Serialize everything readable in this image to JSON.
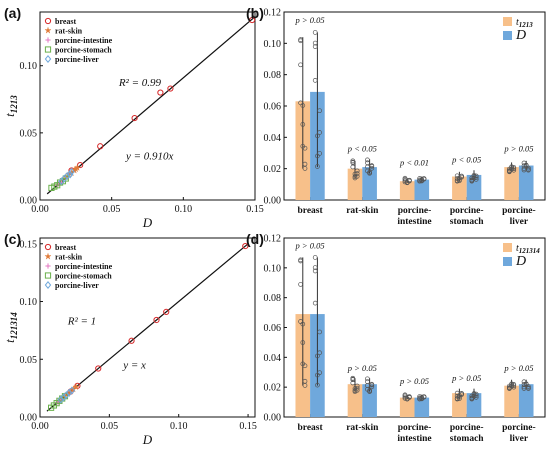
{
  "chart_data": [
    {
      "panel": "(a)",
      "type": "scatter",
      "xlabel": "D",
      "ylabel": "t",
      "ylabel_sub": "1213",
      "xlim": [
        0,
        0.15
      ],
      "ylim": [
        0,
        0.14
      ],
      "xticks": [
        "0.00",
        "0.05",
        "0.10",
        "0.15"
      ],
      "yticks": [
        "0.00",
        "0.05",
        "0.10"
      ],
      "annotations": [
        {
          "text": "R² = 0.99",
          "x": 0.055,
          "y": 0.085
        },
        {
          "text": "y = 0.910x",
          "x": 0.06,
          "y": 0.03
        }
      ],
      "fit_line": {
        "slope": 0.91,
        "x": [
          0.005,
          0.15
        ]
      },
      "series": [
        {
          "name": "breast",
          "marker": "circle",
          "color": "#d62728",
          "points": [
            [
              0.022,
              0.022
            ],
            [
              0.028,
              0.026
            ],
            [
              0.042,
              0.04
            ],
            [
              0.066,
              0.061
            ],
            [
              0.084,
              0.08
            ],
            [
              0.091,
              0.083
            ],
            [
              0.148,
              0.134
            ]
          ]
        },
        {
          "name": "rat-skin",
          "marker": "star",
          "color": "#e07b39",
          "points": [
            [
              0.018,
              0.017
            ],
            [
              0.02,
              0.019
            ],
            [
              0.022,
              0.02
            ],
            [
              0.024,
              0.022
            ],
            [
              0.025,
              0.023
            ],
            [
              0.026,
              0.024
            ]
          ]
        },
        {
          "name": "porcine-intestine",
          "marker": "plus",
          "color": "#e377c2",
          "points": [
            [
              0.012,
              0.011
            ],
            [
              0.013,
              0.012
            ],
            [
              0.014,
              0.013
            ],
            [
              0.015,
              0.013
            ]
          ]
        },
        {
          "name": "porcine-stomach",
          "marker": "square",
          "color": "#6ab04c",
          "points": [
            [
              0.008,
              0.009
            ],
            [
              0.01,
              0.01
            ],
            [
              0.012,
              0.011
            ],
            [
              0.014,
              0.013
            ],
            [
              0.016,
              0.014
            ],
            [
              0.018,
              0.016
            ]
          ]
        },
        {
          "name": "porcine-liver",
          "marker": "diamond",
          "color": "#6fa8dc",
          "points": [
            [
              0.015,
              0.014
            ],
            [
              0.017,
              0.016
            ],
            [
              0.019,
              0.018
            ],
            [
              0.021,
              0.019
            ],
            [
              0.022,
              0.021
            ]
          ]
        }
      ]
    },
    {
      "panel": "(b)",
      "type": "bar",
      "ylim": [
        0,
        0.12
      ],
      "yticks": [
        "0.00",
        "0.02",
        "0.04",
        "0.06",
        "0.08",
        "0.10",
        "0.12"
      ],
      "categories": [
        "breast",
        "rat-skin",
        "porcine-\nintestine",
        "porcine-\nstomach",
        "porcine-\nliver"
      ],
      "series": [
        {
          "name": "t",
          "name_sub": "1213",
          "color": "#f7c08a",
          "values": [
            0.063,
            0.02,
            0.012,
            0.015,
            0.021
          ],
          "err_low": [
            0.02,
            0.014,
            0.011,
            0.012,
            0.018
          ],
          "err_high": [
            0.104,
            0.025,
            0.014,
            0.018,
            0.024
          ]
        },
        {
          "name": "D",
          "name_sub": "",
          "color": "#6fa8dc",
          "values": [
            0.069,
            0.021,
            0.013,
            0.016,
            0.022
          ],
          "err_low": [
            0.021,
            0.017,
            0.012,
            0.012,
            0.019
          ],
          "err_high": [
            0.107,
            0.026,
            0.015,
            0.019,
            0.025
          ]
        }
      ],
      "significance": [
        "p > 0.05",
        "p < 0.05",
        "p < 0.01",
        "p < 0.05",
        "p > 0.05"
      ],
      "sig_heights": [
        0.113,
        0.031,
        0.022,
        0.024,
        0.031
      ]
    },
    {
      "panel": "(c)",
      "type": "scatter",
      "xlabel": "D",
      "ylabel": "t",
      "ylabel_sub": "121314",
      "xlim": [
        0,
        0.155
      ],
      "ylim": [
        0,
        0.155
      ],
      "xticks": [
        "0.00",
        "0.05",
        "0.10",
        "0.15"
      ],
      "yticks": [
        "0.00",
        "0.05",
        "0.10",
        "0.15"
      ],
      "annotations": [
        {
          "text": "R² = 1",
          "x": 0.02,
          "y": 0.08
        },
        {
          "text": "y = x",
          "x": 0.06,
          "y": 0.042
        }
      ],
      "fit_line": {
        "slope": 1.0,
        "x": [
          0.005,
          0.15
        ]
      },
      "series": [
        {
          "name": "breast",
          "marker": "circle",
          "color": "#d62728",
          "points": [
            [
              0.022,
              0.022
            ],
            [
              0.027,
              0.027
            ],
            [
              0.042,
              0.042
            ],
            [
              0.066,
              0.066
            ],
            [
              0.084,
              0.084
            ],
            [
              0.091,
              0.091
            ],
            [
              0.148,
              0.148
            ]
          ]
        },
        {
          "name": "rat-skin",
          "marker": "star",
          "color": "#e07b39",
          "points": [
            [
              0.018,
              0.018
            ],
            [
              0.02,
              0.02
            ],
            [
              0.022,
              0.022
            ],
            [
              0.024,
              0.024
            ],
            [
              0.026,
              0.026
            ]
          ]
        },
        {
          "name": "porcine-intestine",
          "marker": "plus",
          "color": "#e377c2",
          "points": [
            [
              0.012,
              0.012
            ],
            [
              0.013,
              0.013
            ],
            [
              0.014,
              0.014
            ],
            [
              0.015,
              0.015
            ]
          ]
        },
        {
          "name": "porcine-stomach",
          "marker": "square",
          "color": "#6ab04c",
          "points": [
            [
              0.008,
              0.008
            ],
            [
              0.01,
              0.01
            ],
            [
              0.012,
              0.012
            ],
            [
              0.014,
              0.014
            ],
            [
              0.016,
              0.016
            ],
            [
              0.018,
              0.018
            ]
          ]
        },
        {
          "name": "porcine-liver",
          "marker": "diamond",
          "color": "#6fa8dc",
          "points": [
            [
              0.015,
              0.015
            ],
            [
              0.017,
              0.017
            ],
            [
              0.019,
              0.019
            ],
            [
              0.021,
              0.021
            ],
            [
              0.023,
              0.023
            ]
          ]
        }
      ]
    },
    {
      "panel": "(d)",
      "type": "bar",
      "ylim": [
        0,
        0.12
      ],
      "yticks": [
        "0.00",
        "0.02",
        "0.04",
        "0.06",
        "0.08",
        "0.10",
        "0.12"
      ],
      "categories": [
        "breast",
        "rat-skin",
        "porcine-\nintestine",
        "porcine-\nstomach",
        "porcine-\nliver"
      ],
      "series": [
        {
          "name": "t",
          "name_sub": "121314",
          "color": "#f7c08a",
          "values": [
            0.069,
            0.022,
            0.013,
            0.016,
            0.021
          ],
          "err_low": [
            0.021,
            0.017,
            0.012,
            0.012,
            0.019
          ],
          "err_high": [
            0.107,
            0.026,
            0.015,
            0.019,
            0.025
          ]
        },
        {
          "name": "D",
          "name_sub": "",
          "color": "#6fa8dc",
          "values": [
            0.069,
            0.022,
            0.013,
            0.016,
            0.022
          ],
          "err_low": [
            0.021,
            0.017,
            0.012,
            0.012,
            0.019
          ],
          "err_high": [
            0.107,
            0.026,
            0.015,
            0.019,
            0.025
          ]
        }
      ],
      "significance": [
        "p > 0.05",
        "p > 0.05",
        "p > 0.05",
        "p > 0.05",
        "p > 0.05"
      ],
      "sig_heights": [
        0.113,
        0.031,
        0.022,
        0.024,
        0.031
      ]
    }
  ]
}
